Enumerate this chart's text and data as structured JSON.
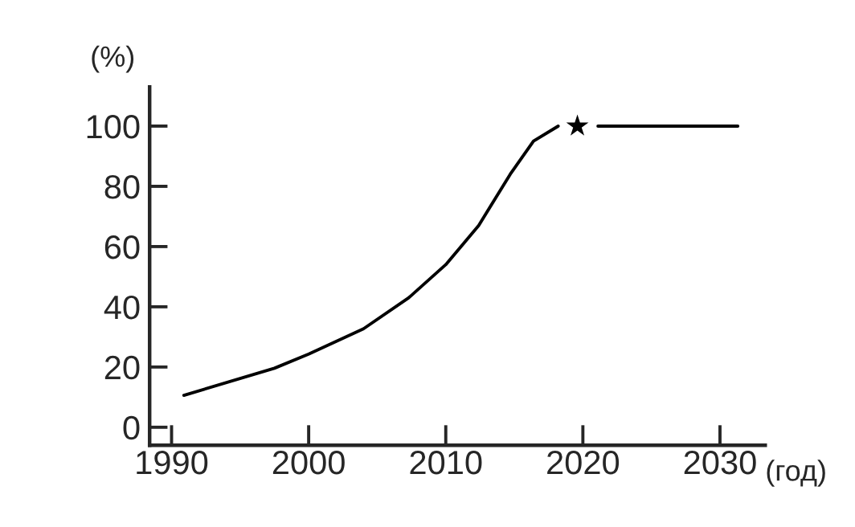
{
  "chart_data": {
    "type": "line",
    "xlabel": "(год)",
    "ylabel": "(%)",
    "series": [
      {
        "color": "#000000",
        "x": [
          1990.9,
          1997.5,
          2000,
          2004,
          2007.3,
          2010,
          2012.4,
          2014.7,
          2016.4,
          2018.2
        ],
        "values": [
          10.6,
          19.6,
          24.3,
          32.7,
          43,
          54,
          67,
          84,
          95,
          100
        ]
      },
      {
        "type": "scatter",
        "color": "#000000",
        "marker": "star",
        "x": [
          2019.6
        ],
        "values": [
          100
        ]
      },
      {
        "color": "#000000",
        "x": [
          2021.1,
          2031.3
        ],
        "values": [
          100,
          100
        ]
      }
    ],
    "xlim": [
      1988.4,
      2033.3
    ],
    "ylim": [
      -6,
      113
    ],
    "xticks": [
      1990,
      2000,
      2010,
      2020,
      2030
    ],
    "yticks": [
      0,
      20,
      40,
      60,
      80,
      100
    ],
    "grid": false,
    "legend": false
  }
}
